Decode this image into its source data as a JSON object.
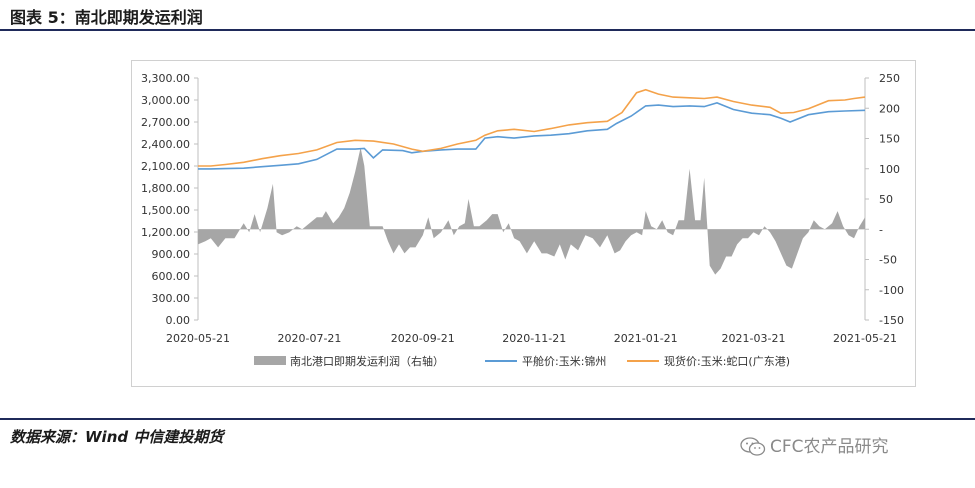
{
  "header": {
    "title": "图表 5：南北即期发运利润"
  },
  "footer": {
    "source": "数据来源：Wind 中信建投期货",
    "brand": "CFC农产品研究"
  },
  "chart_data": {
    "type": "line",
    "title": "",
    "x_ticks": [
      "2020-05-21",
      "2020-07-21",
      "2020-09-21",
      "2020-11-21",
      "2021-01-21",
      "2021-03-21",
      "2021-05-21"
    ],
    "y_left": {
      "ylim": [
        0,
        3300
      ],
      "ticks": [
        "3,300.00",
        "3,000.00",
        "2,700.00",
        "2,400.00",
        "2,100.00",
        "1,800.00",
        "1,500.00",
        "1,200.00",
        "900.00",
        "600.00",
        "300.00",
        "0.00"
      ]
    },
    "y_right": {
      "ylim": [
        -150,
        250
      ],
      "ticks": [
        "250",
        "200",
        "150",
        "100",
        "50",
        "-",
        "-50",
        "-100",
        "-150"
      ]
    },
    "legend_position": "bottom",
    "colors": {
      "profit": "#a6a6a6",
      "pingcang": "#5b9bd5",
      "xianhuo": "#f4a24a"
    },
    "series": [
      {
        "name": "南北港口即期发运利润（右轴）",
        "type": "area",
        "axis": "right",
        "points": [
          [
            "2020-05-21",
            -25
          ],
          [
            "2020-05-25",
            -20
          ],
          [
            "2020-05-28",
            -15
          ],
          [
            "2020-06-01",
            -30
          ],
          [
            "2020-06-05",
            -15
          ],
          [
            "2020-06-10",
            -15
          ],
          [
            "2020-06-15",
            10
          ],
          [
            "2020-06-18",
            -5
          ],
          [
            "2020-06-21",
            25
          ],
          [
            "2020-06-24",
            -5
          ],
          [
            "2020-06-28",
            35
          ],
          [
            "2020-07-01",
            75
          ],
          [
            "2020-07-03",
            -5
          ],
          [
            "2020-07-06",
            -10
          ],
          [
            "2020-07-10",
            -5
          ],
          [
            "2020-07-14",
            5
          ],
          [
            "2020-07-17",
            0
          ],
          [
            "2020-07-21",
            10
          ],
          [
            "2020-07-25",
            20
          ],
          [
            "2020-07-28",
            20
          ],
          [
            "2020-07-30",
            30
          ],
          [
            "2020-08-03",
            10
          ],
          [
            "2020-08-06",
            20
          ],
          [
            "2020-08-09",
            35
          ],
          [
            "2020-08-12",
            60
          ],
          [
            "2020-08-15",
            95
          ],
          [
            "2020-08-18",
            135
          ],
          [
            "2020-08-20",
            105
          ],
          [
            "2020-08-23",
            5
          ],
          [
            "2020-08-26",
            5
          ],
          [
            "2020-08-30",
            5
          ],
          [
            "2020-09-02",
            -20
          ],
          [
            "2020-09-05",
            -40
          ],
          [
            "2020-09-08",
            -25
          ],
          [
            "2020-09-11",
            -40
          ],
          [
            "2020-09-14",
            -30
          ],
          [
            "2020-09-17",
            -30
          ],
          [
            "2020-09-21",
            -10
          ],
          [
            "2020-09-24",
            20
          ],
          [
            "2020-09-27",
            -15
          ],
          [
            "2020-10-01",
            -5
          ],
          [
            "2020-10-05",
            15
          ],
          [
            "2020-10-08",
            -10
          ],
          [
            "2020-10-11",
            5
          ],
          [
            "2020-10-14",
            10
          ],
          [
            "2020-10-16",
            50
          ],
          [
            "2020-10-19",
            5
          ],
          [
            "2020-10-22",
            5
          ],
          [
            "2020-10-26",
            15
          ],
          [
            "2020-10-29",
            25
          ],
          [
            "2020-11-01",
            25
          ],
          [
            "2020-11-04",
            -5
          ],
          [
            "2020-11-07",
            10
          ],
          [
            "2020-11-10",
            -15
          ],
          [
            "2020-11-13",
            -20
          ],
          [
            "2020-11-17",
            -40
          ],
          [
            "2020-11-21",
            -20
          ],
          [
            "2020-11-25",
            -40
          ],
          [
            "2020-11-28",
            -40
          ],
          [
            "2020-12-02",
            -45
          ],
          [
            "2020-12-05",
            -25
          ],
          [
            "2020-12-08",
            -50
          ],
          [
            "2020-12-11",
            -25
          ],
          [
            "2020-12-15",
            -35
          ],
          [
            "2020-12-19",
            -10
          ],
          [
            "2020-12-23",
            -15
          ],
          [
            "2020-12-27",
            -30
          ],
          [
            "2020-12-31",
            -10
          ],
          [
            "2021-01-04",
            -40
          ],
          [
            "2021-01-07",
            -35
          ],
          [
            "2021-01-10",
            -20
          ],
          [
            "2021-01-13",
            -10
          ],
          [
            "2021-01-16",
            -5
          ],
          [
            "2021-01-19",
            -10
          ],
          [
            "2021-01-21",
            30
          ],
          [
            "2021-01-24",
            5
          ],
          [
            "2021-01-27",
            0
          ],
          [
            "2021-01-30",
            15
          ],
          [
            "2021-02-02",
            -5
          ],
          [
            "2021-02-05",
            -10
          ],
          [
            "2021-02-08",
            15
          ],
          [
            "2021-02-11",
            15
          ],
          [
            "2021-02-14",
            100
          ],
          [
            "2021-02-17",
            15
          ],
          [
            "2021-02-20",
            15
          ],
          [
            "2021-02-22",
            85
          ],
          [
            "2021-02-25",
            -60
          ],
          [
            "2021-02-28",
            -75
          ],
          [
            "2021-03-03",
            -65
          ],
          [
            "2021-03-06",
            -45
          ],
          [
            "2021-03-09",
            -45
          ],
          [
            "2021-03-12",
            -25
          ],
          [
            "2021-03-15",
            -15
          ],
          [
            "2021-03-18",
            -15
          ],
          [
            "2021-03-21",
            -5
          ],
          [
            "2021-03-24",
            -10
          ],
          [
            "2021-03-27",
            5
          ],
          [
            "2021-03-30",
            -5
          ],
          [
            "2021-04-02",
            -20
          ],
          [
            "2021-04-05",
            -40
          ],
          [
            "2021-04-08",
            -60
          ],
          [
            "2021-04-11",
            -65
          ],
          [
            "2021-04-14",
            -40
          ],
          [
            "2021-04-17",
            -15
          ],
          [
            "2021-04-20",
            -5
          ],
          [
            "2021-04-23",
            15
          ],
          [
            "2021-04-26",
            5
          ],
          [
            "2021-04-29",
            0
          ],
          [
            "2021-05-03",
            10
          ],
          [
            "2021-05-06",
            30
          ],
          [
            "2021-05-09",
            5
          ],
          [
            "2021-05-12",
            -10
          ],
          [
            "2021-05-15",
            -15
          ],
          [
            "2021-05-18",
            5
          ],
          [
            "2021-05-21",
            20
          ]
        ]
      },
      {
        "name": "平舱价:玉米:锦州",
        "type": "line",
        "axis": "left",
        "points": [
          [
            "2020-05-21",
            2060
          ],
          [
            "2020-05-28",
            2060
          ],
          [
            "2020-06-05",
            2065
          ],
          [
            "2020-06-15",
            2070
          ],
          [
            "2020-06-25",
            2090
          ],
          [
            "2020-07-05",
            2110
          ],
          [
            "2020-07-15",
            2130
          ],
          [
            "2020-07-25",
            2190
          ],
          [
            "2020-08-05",
            2330
          ],
          [
            "2020-08-15",
            2330
          ],
          [
            "2020-08-20",
            2340
          ],
          [
            "2020-08-25",
            2210
          ],
          [
            "2020-08-30",
            2320
          ],
          [
            "2020-09-10",
            2310
          ],
          [
            "2020-09-15",
            2280
          ],
          [
            "2020-09-21",
            2300
          ],
          [
            "2020-10-01",
            2320
          ],
          [
            "2020-10-10",
            2330
          ],
          [
            "2020-10-20",
            2330
          ],
          [
            "2020-10-25",
            2480
          ],
          [
            "2020-11-01",
            2500
          ],
          [
            "2020-11-10",
            2480
          ],
          [
            "2020-11-21",
            2510
          ],
          [
            "2020-11-30",
            2520
          ],
          [
            "2020-12-10",
            2540
          ],
          [
            "2020-12-20",
            2580
          ],
          [
            "2020-12-31",
            2600
          ],
          [
            "2021-01-05",
            2680
          ],
          [
            "2021-01-13",
            2780
          ],
          [
            "2021-01-21",
            2920
          ],
          [
            "2021-01-28",
            2930
          ],
          [
            "2021-02-05",
            2910
          ],
          [
            "2021-02-14",
            2920
          ],
          [
            "2021-02-22",
            2910
          ],
          [
            "2021-03-01",
            2960
          ],
          [
            "2021-03-10",
            2870
          ],
          [
            "2021-03-20",
            2820
          ],
          [
            "2021-03-30",
            2800
          ],
          [
            "2021-04-05",
            2750
          ],
          [
            "2021-04-10",
            2700
          ],
          [
            "2021-04-20",
            2800
          ],
          [
            "2021-05-01",
            2840
          ],
          [
            "2021-05-10",
            2850
          ],
          [
            "2021-05-21",
            2860
          ]
        ]
      },
      {
        "name": "现货价:玉米:蛇口(广东港)",
        "type": "line",
        "axis": "left",
        "points": [
          [
            "2020-05-21",
            2100
          ],
          [
            "2020-05-28",
            2100
          ],
          [
            "2020-06-05",
            2120
          ],
          [
            "2020-06-15",
            2150
          ],
          [
            "2020-06-25",
            2200
          ],
          [
            "2020-07-05",
            2240
          ],
          [
            "2020-07-15",
            2270
          ],
          [
            "2020-07-25",
            2320
          ],
          [
            "2020-08-05",
            2420
          ],
          [
            "2020-08-15",
            2450
          ],
          [
            "2020-08-25",
            2440
          ],
          [
            "2020-09-05",
            2400
          ],
          [
            "2020-09-15",
            2330
          ],
          [
            "2020-09-21",
            2300
          ],
          [
            "2020-10-01",
            2340
          ],
          [
            "2020-10-10",
            2400
          ],
          [
            "2020-10-20",
            2450
          ],
          [
            "2020-10-25",
            2520
          ],
          [
            "2020-11-01",
            2580
          ],
          [
            "2020-11-10",
            2600
          ],
          [
            "2020-11-21",
            2570
          ],
          [
            "2020-11-30",
            2610
          ],
          [
            "2020-12-10",
            2660
          ],
          [
            "2020-12-20",
            2690
          ],
          [
            "2020-12-31",
            2710
          ],
          [
            "2021-01-08",
            2830
          ],
          [
            "2021-01-16",
            3100
          ],
          [
            "2021-01-21",
            3140
          ],
          [
            "2021-01-28",
            3080
          ],
          [
            "2021-02-05",
            3040
          ],
          [
            "2021-02-14",
            3030
          ],
          [
            "2021-02-22",
            3020
          ],
          [
            "2021-03-01",
            3040
          ],
          [
            "2021-03-10",
            2980
          ],
          [
            "2021-03-20",
            2930
          ],
          [
            "2021-03-30",
            2900
          ],
          [
            "2021-04-05",
            2820
          ],
          [
            "2021-04-12",
            2830
          ],
          [
            "2021-04-20",
            2880
          ],
          [
            "2021-05-01",
            2990
          ],
          [
            "2021-05-10",
            3000
          ],
          [
            "2021-05-15",
            3020
          ],
          [
            "2021-05-21",
            3040
          ]
        ]
      }
    ]
  }
}
